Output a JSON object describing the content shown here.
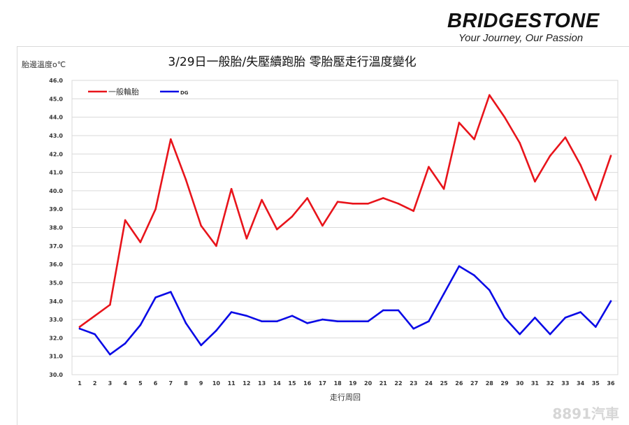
{
  "brand": {
    "logo_text": "BRIDGESTONE",
    "tagline": "Your Journey, Our Passion"
  },
  "watermark": "8891汽車",
  "colors": {
    "series_regular": "#e8141b",
    "series_dg": "#0a0ae6",
    "grid": "#d9d9d9",
    "axis_text": "#333333"
  },
  "chart_data": {
    "type": "line",
    "title": "3/29日一般胎/失壓續跑胎  零胎壓走行溫度變化",
    "ylabel": "胎邊溫度o℃",
    "xlabel": "走行周回",
    "ylim": [
      30.0,
      46.0
    ],
    "ytick_step": 1.0,
    "grid": true,
    "legend_position": "top-left",
    "x": [
      1,
      2,
      3,
      4,
      5,
      6,
      7,
      8,
      9,
      10,
      11,
      12,
      13,
      14,
      15,
      16,
      17,
      18,
      19,
      20,
      21,
      22,
      23,
      24,
      25,
      26,
      27,
      28,
      29,
      30,
      31,
      32,
      33,
      34,
      35,
      36
    ],
    "series": [
      {
        "name": "一般輪胎",
        "color": "#e8141b",
        "values": [
          32.6,
          33.2,
          33.8,
          38.4,
          37.2,
          39.0,
          42.8,
          40.6,
          38.1,
          37.0,
          40.1,
          37.4,
          39.5,
          37.9,
          38.6,
          39.6,
          38.1,
          39.4,
          39.3,
          39.3,
          39.6,
          39.3,
          38.9,
          41.3,
          40.1,
          43.7,
          42.8,
          45.2,
          44.0,
          42.6,
          40.5,
          41.9,
          42.9,
          41.4,
          39.5,
          41.9
        ]
      },
      {
        "name": "DG",
        "color": "#0a0ae6",
        "values": [
          32.5,
          32.2,
          31.1,
          31.7,
          32.7,
          34.2,
          34.5,
          32.8,
          31.6,
          32.4,
          33.4,
          33.2,
          32.9,
          32.9,
          33.2,
          32.8,
          33.0,
          32.9,
          32.9,
          32.9,
          33.5,
          33.5,
          32.5,
          32.9,
          34.4,
          35.9,
          35.4,
          34.6,
          33.1,
          32.2,
          33.1,
          32.2,
          33.1,
          33.4,
          32.6,
          34.0
        ]
      }
    ]
  }
}
